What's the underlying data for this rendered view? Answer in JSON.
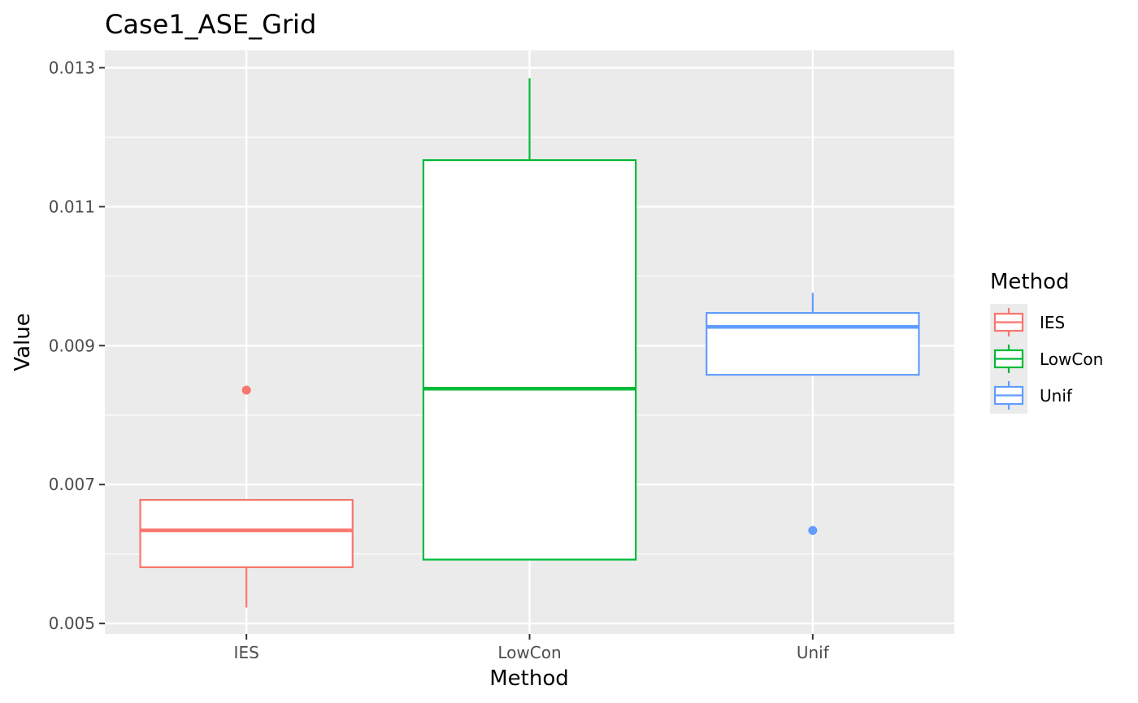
{
  "chart_data": {
    "type": "boxplot",
    "title": "Case1_ASE_Grid",
    "xlabel": "Method",
    "ylabel": "Value",
    "ylim": [
      0.00485,
      0.01325
    ],
    "yticks": [
      0.005,
      0.007,
      0.009,
      0.011,
      0.013
    ],
    "ytick_labels": [
      "0.005",
      "0.007",
      "0.009",
      "0.011",
      "0.013"
    ],
    "grid": true,
    "legend": {
      "title": "Method",
      "position": "right"
    },
    "categories": [
      "IES",
      "LowCon",
      "Unif"
    ],
    "series": [
      {
        "name": "IES",
        "color": "#F8766D",
        "lower_whisker": 0.00523,
        "q1": 0.00581,
        "median": 0.00634,
        "q3": 0.00678,
        "upper_whisker": 0.00678,
        "outliers": [
          0.00836
        ]
      },
      {
        "name": "LowCon",
        "color": "#00BA38",
        "lower_whisker": 0.00592,
        "q1": 0.00592,
        "median": 0.00838,
        "q3": 0.01167,
        "upper_whisker": 0.01285,
        "outliers": []
      },
      {
        "name": "Unif",
        "color": "#619CFF",
        "lower_whisker": 0.00858,
        "q1": 0.00858,
        "median": 0.00927,
        "q3": 0.00947,
        "upper_whisker": 0.00976,
        "outliers": [
          0.00634
        ]
      }
    ]
  }
}
